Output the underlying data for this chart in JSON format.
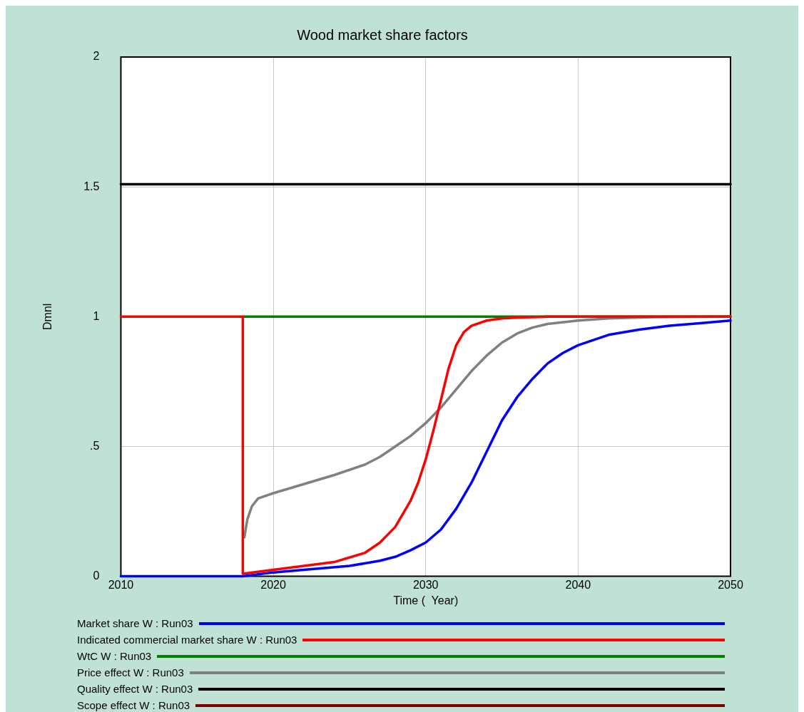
{
  "chart_data": {
    "type": "line",
    "title": "Wood market share factors",
    "xlabel": "Time (  Year)",
    "ylabel": "Dmnl",
    "xlim": [
      2010,
      2050
    ],
    "xticks": [
      2010,
      2020,
      2030,
      2040,
      2050
    ],
    "ylim": [
      0,
      2
    ],
    "yticks": [
      0,
      {
        "value": 0.5,
        "label": ".5"
      },
      1,
      1.5,
      2
    ],
    "grid": true,
    "legend": "bottom",
    "marker": "none",
    "line_style": "solid",
    "series": [
      {
        "name": "Market share W : Run03",
        "color": "#0000ff",
        "x": [
          2010,
          2018,
          2020,
          2022,
          2025,
          2027,
          2028,
          2029,
          2030,
          2031,
          2032,
          2033,
          2034,
          2035,
          2036,
          2037,
          2038,
          2039,
          2040,
          2042,
          2044,
          2046,
          2048,
          2050
        ],
        "values": [
          0,
          0,
          0.015,
          0.025,
          0.04,
          0.06,
          0.075,
          0.1,
          0.13,
          0.18,
          0.26,
          0.36,
          0.48,
          0.6,
          0.69,
          0.76,
          0.82,
          0.86,
          0.89,
          0.93,
          0.95,
          0.965,
          0.975,
          0.985
        ]
      },
      {
        "name": "Indicated commercial market share W : Run03",
        "color": "#ff0000",
        "x": [
          2010,
          2018,
          2018,
          2020,
          2022,
          2024,
          2026,
          2027,
          2028,
          2029,
          2029.5,
          2030,
          2030.5,
          2031,
          2031.5,
          2032,
          2032.5,
          2033,
          2034,
          2035,
          2036,
          2038,
          2040,
          2050
        ],
        "values": [
          1,
          1,
          0.01,
          0.025,
          0.04,
          0.055,
          0.09,
          0.13,
          0.19,
          0.29,
          0.36,
          0.45,
          0.56,
          0.68,
          0.8,
          0.89,
          0.94,
          0.965,
          0.985,
          0.993,
          0.997,
          1,
          1,
          1
        ]
      },
      {
        "name": "WtC W : Run03",
        "color": "#008000",
        "x": [
          2018,
          2050
        ],
        "values": [
          1,
          1
        ]
      },
      {
        "name": "Price effect W : Run03",
        "color": "#808080",
        "x": [
          2018.1,
          2018.3,
          2018.6,
          2019,
          2020,
          2022,
          2024,
          2026,
          2027,
          2028,
          2029,
          2030,
          2031,
          2032,
          2033,
          2034,
          2035,
          2036,
          2037,
          2038,
          2040,
          2042,
          2045,
          2050
        ],
        "values": [
          0.15,
          0.22,
          0.27,
          0.3,
          0.32,
          0.355,
          0.39,
          0.43,
          0.46,
          0.5,
          0.54,
          0.59,
          0.65,
          0.72,
          0.79,
          0.85,
          0.9,
          0.935,
          0.958,
          0.972,
          0.985,
          0.993,
          0.998,
          1
        ]
      },
      {
        "name": "Quality effect W : Run03",
        "color": "#000000",
        "x": [
          2010,
          2050
        ],
        "values": [
          1.51,
          1.51
        ]
      },
      {
        "name": "Scope effect W : Run03",
        "color": "#800000"
      }
    ]
  }
}
